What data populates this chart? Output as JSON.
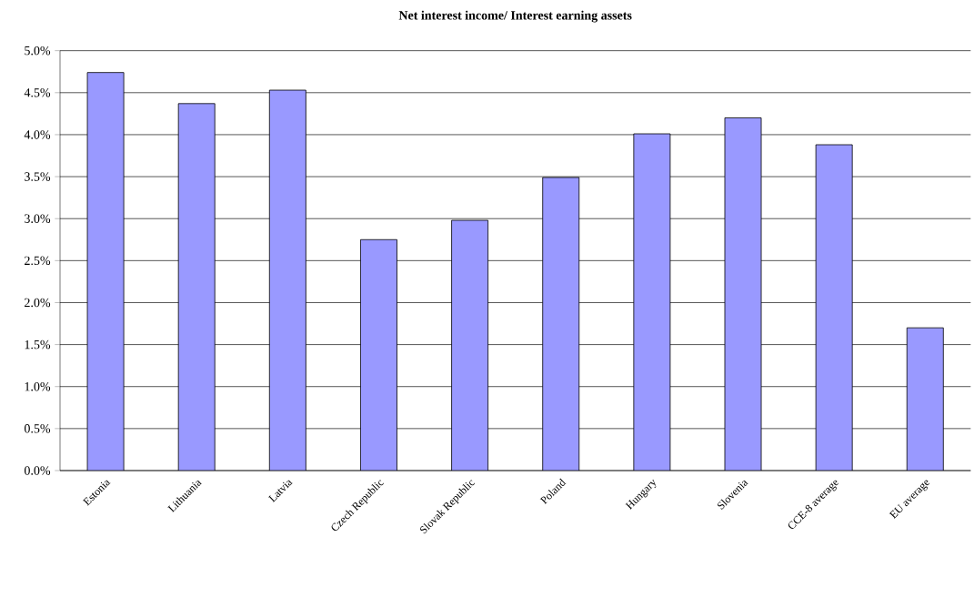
{
  "chart_data": {
    "type": "bar",
    "title": "Net interest income/ Interest earning assets",
    "categories": [
      "Estonia",
      "Lithuania",
      "Latvia",
      "Czech Republic",
      "Slovak Republic",
      "Poland",
      "Hungary",
      "Slovenia",
      "CCE-8 average",
      "EU average"
    ],
    "values": [
      4.74,
      4.37,
      4.53,
      2.75,
      2.98,
      3.49,
      4.01,
      4.2,
      3.88,
      1.7
    ],
    "color": "#9999ff",
    "ylim": [
      0,
      5
    ],
    "yticks": [
      {
        "value": 0,
        "label": "0.0%"
      },
      {
        "value": 0.5,
        "label": "0.5%"
      },
      {
        "value": 1,
        "label": "1.0%"
      },
      {
        "value": 1.5,
        "label": "1.5%"
      },
      {
        "value": 2,
        "label": "2.0%"
      },
      {
        "value": 2.5,
        "label": "2.5%"
      },
      {
        "value": 3,
        "label": "3.0%"
      },
      {
        "value": 3.5,
        "label": "3.5%"
      },
      {
        "value": 4,
        "label": "4.0%"
      },
      {
        "value": 4.5,
        "label": "4.5%"
      },
      {
        "value": 5,
        "label": "5.0%"
      }
    ],
    "grid": "y"
  }
}
